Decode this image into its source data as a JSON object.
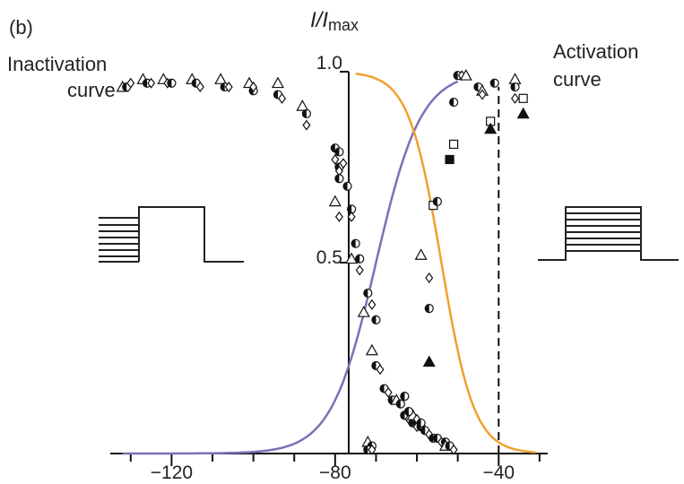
{
  "panel_label": "(b)",
  "chart_data": {
    "type": "scatter",
    "title": "",
    "ylabel": {
      "main": "I/I",
      "sub": "max"
    },
    "xlabel": "",
    "xlim": [
      -135,
      -28
    ],
    "ylim": [
      0,
      1.0
    ],
    "x_ticks": [
      -120,
      -80,
      -40
    ],
    "x_tick_labels": [
      "−120",
      "−80",
      "−40"
    ],
    "y_ticks": [
      0.5,
      1.0
    ],
    "y_tick_labels": [
      "0.5",
      "1.0"
    ],
    "reference_line": {
      "x": -40,
      "style": "dashed"
    },
    "curve_labels": {
      "inactivation": [
        "Inactivation",
        "curve"
      ],
      "activation": [
        "Activation",
        "curve"
      ]
    },
    "colors": {
      "inactivation": "#7b70b8",
      "activation": "#f0a030",
      "marker": "#111111"
    },
    "fits": [
      {
        "name": "Inactivation curve",
        "type": "boltzmann",
        "v_half": -70,
        "k": -5.5,
        "x_range": [
          -132,
          -50
        ]
      },
      {
        "name": "Activation curve",
        "type": "boltzmann",
        "v_half": -54,
        "k": 4.0,
        "x_range": [
          -75,
          -31
        ]
      }
    ],
    "series": [
      {
        "name": "inactivation points",
        "points": [
          [
            -132,
            0.96,
            "t"
          ],
          [
            -131,
            0.96,
            "h"
          ],
          [
            -130,
            0.97,
            "d"
          ],
          [
            -127,
            0.98,
            "t"
          ],
          [
            -126,
            0.97,
            "h"
          ],
          [
            -125,
            0.97,
            "d"
          ],
          [
            -122,
            0.98,
            "t"
          ],
          [
            -121,
            0.97,
            "d"
          ],
          [
            -120,
            0.97,
            "h"
          ],
          [
            -115,
            0.98,
            "t"
          ],
          [
            -114,
            0.97,
            "h"
          ],
          [
            -113,
            0.96,
            "d"
          ],
          [
            -108,
            0.98,
            "t"
          ],
          [
            -107,
            0.96,
            "h"
          ],
          [
            -106,
            0.96,
            "d"
          ],
          [
            -101,
            0.97,
            "t"
          ],
          [
            -100,
            0.95,
            "h"
          ],
          [
            -100,
            0.96,
            "d"
          ],
          [
            -94,
            0.97,
            "t"
          ],
          [
            -94,
            0.94,
            "h"
          ],
          [
            -93,
            0.93,
            "d"
          ],
          [
            -88,
            0.91,
            "t"
          ],
          [
            -87,
            0.89,
            "h"
          ],
          [
            -87,
            0.86,
            "d"
          ],
          [
            -80,
            0.8,
            "h"
          ],
          [
            -80,
            0.77,
            "d"
          ],
          [
            -79,
            0.79,
            "h"
          ],
          [
            -79,
            0.75,
            "h"
          ],
          [
            -79,
            0.74,
            "d"
          ],
          [
            -79,
            0.72,
            "h"
          ],
          [
            -78,
            0.76,
            "d"
          ],
          [
            -80,
            0.66,
            "t"
          ],
          [
            -79,
            0.62,
            "d"
          ],
          [
            -77,
            0.7,
            "h"
          ],
          [
            -76,
            0.64,
            "h"
          ],
          [
            -76,
            0.62,
            "d"
          ],
          [
            -75,
            0.55,
            "h"
          ],
          [
            -74,
            0.51,
            "h"
          ],
          [
            -74,
            0.48,
            "d"
          ],
          [
            -76,
            0.51,
            "t"
          ],
          [
            -72,
            0.42,
            "h"
          ],
          [
            -71,
            0.39,
            "d"
          ],
          [
            -73,
            0.37,
            "t"
          ],
          [
            -70,
            0.35,
            "h"
          ],
          [
            -71,
            0.27,
            "t"
          ],
          [
            -70,
            0.23,
            "h"
          ],
          [
            -69,
            0.22,
            "d"
          ],
          [
            -68,
            0.17,
            "h"
          ],
          [
            -67,
            0.16,
            "d"
          ],
          [
            -66,
            0.14,
            "h"
          ],
          [
            -65,
            0.14,
            "t"
          ],
          [
            -64,
            0.13,
            "h"
          ],
          [
            -63,
            0.1,
            "h"
          ],
          [
            -62,
            0.09,
            "d"
          ],
          [
            -61,
            0.08,
            "h"
          ],
          [
            -60,
            0.08,
            "h"
          ],
          [
            -60,
            0.07,
            "d"
          ],
          [
            -59,
            0.07,
            "h"
          ],
          [
            -58,
            0.06,
            "h"
          ],
          [
            -57,
            0.05,
            "d"
          ],
          [
            -56,
            0.04,
            "h"
          ],
          [
            -55,
            0.04,
            "h"
          ],
          [
            -54,
            0.03,
            "d"
          ],
          [
            -53,
            0.03,
            "h"
          ],
          [
            -53,
            0.02,
            "t"
          ],
          [
            -52,
            0.02,
            "h"
          ],
          [
            -51,
            0.01,
            "d"
          ],
          [
            -72,
            0.03,
            "t"
          ],
          [
            -71,
            0.02,
            "h"
          ],
          [
            -72,
            0.01,
            "h"
          ],
          [
            -71,
            0.01,
            "d"
          ]
        ]
      },
      {
        "name": "activation points",
        "points": [
          [
            -61,
            0.1,
            "t"
          ],
          [
            -60,
            0.09,
            "d"
          ],
          [
            -59,
            0.08,
            "h"
          ],
          [
            -62,
            0.11,
            "h"
          ],
          [
            -63,
            0.15,
            "h"
          ],
          [
            -59,
            0.52,
            "t"
          ],
          [
            -57,
            0.46,
            "d"
          ],
          [
            -57,
            0.38,
            "h"
          ],
          [
            -57,
            0.24,
            "tf"
          ],
          [
            -56,
            0.65,
            "s"
          ],
          [
            -55,
            0.66,
            "h"
          ],
          [
            -52,
            0.77,
            "sf"
          ],
          [
            -51,
            0.81,
            "s"
          ],
          [
            -51,
            0.92,
            "h"
          ],
          [
            -50,
            0.99,
            "h"
          ],
          [
            -49,
            0.99,
            "d"
          ],
          [
            -48,
            0.99,
            "t"
          ],
          [
            -45,
            0.96,
            "h"
          ],
          [
            -44,
            0.95,
            "t"
          ],
          [
            -44,
            0.94,
            "d"
          ],
          [
            -42,
            0.87,
            "s"
          ],
          [
            -42,
            0.85,
            "tf"
          ],
          [
            -41,
            0.97,
            "h"
          ],
          [
            -36,
            0.98,
            "t"
          ],
          [
            -36,
            0.96,
            "h"
          ],
          [
            -36,
            0.93,
            "d"
          ],
          [
            -34,
            0.93,
            "s"
          ],
          [
            -34,
            0.89,
            "tf"
          ]
        ]
      }
    ]
  }
}
